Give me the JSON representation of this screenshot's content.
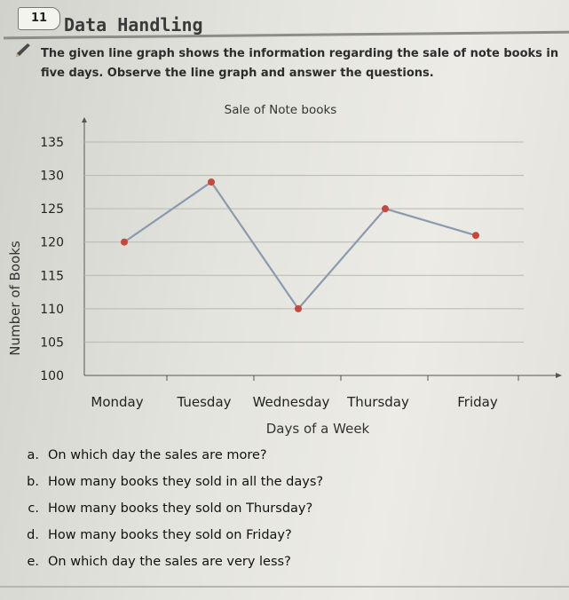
{
  "chapter": {
    "number": "11",
    "title": "Data Handling"
  },
  "intro": {
    "text": "The given line graph shows the information regarding the sale of note books in five days. Observe the line graph and answer the questions."
  },
  "chart_data": {
    "type": "line",
    "title": "Sale of Note books",
    "xlabel": "Days of a Week",
    "ylabel": "Number of Books",
    "categories": [
      "Monday",
      "Tuesday",
      "Wednesday",
      "Thursday",
      "Friday"
    ],
    "values": [
      120,
      129,
      110,
      125,
      121
    ],
    "y_ticks": [
      "100",
      "105",
      "110",
      "115",
      "120",
      "125",
      "130",
      "135"
    ],
    "ylim": [
      100,
      135
    ],
    "grid": true,
    "line_color": "#8b9aad",
    "marker_color": "#c8463a"
  },
  "questions": [
    {
      "letter": "a.",
      "text": "On which day the sales are more?"
    },
    {
      "letter": "b.",
      "text": "How many books they sold in all the days?"
    },
    {
      "letter": "c.",
      "text": "How many books they sold on Thursday?"
    },
    {
      "letter": "d.",
      "text": "How many books they sold on Friday?"
    },
    {
      "letter": "e.",
      "text": "On which day the sales are very less?"
    }
  ]
}
